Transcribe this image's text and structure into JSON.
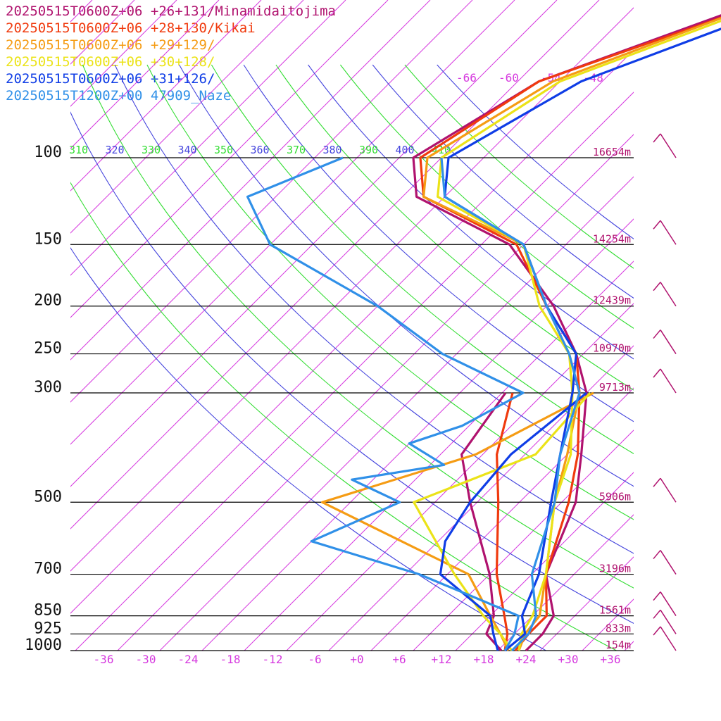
{
  "legend": [
    {
      "label": "20250515T0600Z+06 +26+131/Minamidaitojima",
      "color": "#b0126e"
    },
    {
      "label": "20250515T0600Z+06 +28+130/Kikai",
      "color": "#f03a0e"
    },
    {
      "label": "20250515T0600Z+06 +29+129/",
      "color": "#f59c14"
    },
    {
      "label": "20250515T0600Z+06 +30+128/",
      "color": "#ebe318"
    },
    {
      "label": "20250515T0600Z+06 +31+126/",
      "color": "#0f3de6"
    },
    {
      "label": "20250515T1200Z+00 47909_Naze",
      "color": "#3090e8"
    }
  ],
  "chart_data": {
    "type": "line",
    "pressure_levels": [
      {
        "p": 100,
        "label": "100",
        "height": "16654m"
      },
      {
        "p": 150,
        "label": "150",
        "height": "14254m"
      },
      {
        "p": 200,
        "label": "200",
        "height": "12439m"
      },
      {
        "p": 250,
        "label": "250",
        "height": "10970m"
      },
      {
        "p": 300,
        "label": "300",
        "height": "9713m"
      },
      {
        "p": 500,
        "label": "500",
        "height": "5906m"
      },
      {
        "p": 700,
        "label": "700",
        "height": "3196m"
      },
      {
        "p": 850,
        "label": "850",
        "height": "1561m"
      },
      {
        "p": 925,
        "label": "925",
        "height": "833m"
      },
      {
        "p": 1000,
        "label": "1000",
        "height": "154m"
      }
    ],
    "x_ticks": [
      "-36",
      "-30",
      "-24",
      "-18",
      "-12",
      "-6",
      "+0",
      "+6",
      "+12",
      "+18",
      "+24",
      "+30",
      "+36"
    ],
    "theta_labels": [
      {
        "value": "310",
        "color": "#33dd33"
      },
      {
        "value": "320",
        "color": "#4444dd"
      },
      {
        "value": "330",
        "color": "#33dd33"
      },
      {
        "value": "340",
        "color": "#4444dd"
      },
      {
        "value": "350",
        "color": "#33dd33"
      },
      {
        "value": "360",
        "color": "#4444dd"
      },
      {
        "value": "370",
        "color": "#33dd33"
      },
      {
        "value": "380",
        "color": "#4444dd"
      },
      {
        "value": "390",
        "color": "#33dd33"
      },
      {
        "value": "400",
        "color": "#4444dd"
      },
      {
        "value": "410",
        "color": "#33dd33"
      }
    ],
    "isotherm_labels": [
      "-66",
      "-60",
      "-54",
      "-48"
    ],
    "series": [
      {
        "name": "20250515T0600Z+06 +26+131/Minamidaitojima",
        "color": "#b0126e",
        "temp": [
          [
            1000,
            24
          ],
          [
            925,
            24
          ],
          [
            850,
            23
          ],
          [
            700,
            16
          ],
          [
            500,
            10
          ],
          [
            400,
            4
          ],
          [
            300,
            -4
          ],
          [
            250,
            -11
          ],
          [
            200,
            -21
          ],
          [
            150,
            -36
          ],
          [
            120,
            -56
          ],
          [
            100,
            -62
          ],
          [
            70,
            -55
          ],
          [
            50,
            -37
          ]
        ],
        "dew": [
          [
            1000,
            20.5
          ],
          [
            925,
            16
          ],
          [
            850,
            14.5
          ],
          [
            700,
            8
          ],
          [
            500,
            -5
          ],
          [
            400,
            -13
          ],
          [
            300,
            -15.5
          ]
        ]
      },
      {
        "name": "20250515T0600Z+06 +28+130/Kikai",
        "color": "#f03a0e",
        "temp": [
          [
            1000,
            22.5
          ],
          [
            925,
            22
          ],
          [
            850,
            22
          ],
          [
            700,
            16
          ],
          [
            500,
            9
          ],
          [
            400,
            3.5
          ],
          [
            300,
            -5
          ],
          [
            250,
            -11
          ],
          [
            200,
            -22
          ],
          [
            150,
            -35
          ],
          [
            120,
            -55
          ],
          [
            100,
            -61
          ],
          [
            70,
            -55
          ],
          [
            50,
            -36
          ]
        ],
        "dew": [
          [
            1000,
            21
          ],
          [
            925,
            19
          ],
          [
            850,
            16
          ],
          [
            700,
            9
          ],
          [
            500,
            -1
          ],
          [
            400,
            -8
          ],
          [
            300,
            -14.5
          ]
        ]
      },
      {
        "name": "20250515T0600Z+06 +29+129/",
        "color": "#f59c14",
        "temp": [
          [
            1000,
            23
          ],
          [
            925,
            21.5
          ],
          [
            850,
            21
          ],
          [
            700,
            16
          ],
          [
            500,
            7
          ],
          [
            400,
            2
          ],
          [
            300,
            -5
          ],
          [
            250,
            -12
          ],
          [
            200,
            -22
          ],
          [
            150,
            -34
          ],
          [
            120,
            -55
          ],
          [
            100,
            -60
          ],
          [
            70,
            -53
          ],
          [
            50,
            -36
          ]
        ],
        "dew": [
          [
            1000,
            21.5
          ],
          [
            925,
            18
          ],
          [
            850,
            14
          ],
          [
            700,
            5
          ],
          [
            500,
            -26
          ],
          [
            400,
            -11
          ],
          [
            300,
            -3
          ]
        ]
      },
      {
        "name": "20250515T0600Z+06 +30+128/",
        "color": "#ebe318",
        "temp": [
          [
            1000,
            23
          ],
          [
            925,
            21
          ],
          [
            850,
            20
          ],
          [
            700,
            16
          ],
          [
            500,
            7
          ],
          [
            400,
            2.5
          ],
          [
            300,
            -6
          ],
          [
            250,
            -12
          ],
          [
            200,
            -23
          ],
          [
            150,
            -34
          ],
          [
            120,
            -53
          ],
          [
            100,
            -58
          ],
          [
            70,
            -52
          ],
          [
            50,
            -35
          ]
        ],
        "dew": [
          [
            1000,
            22
          ],
          [
            925,
            18
          ],
          [
            850,
            13
          ],
          [
            700,
            3
          ],
          [
            500,
            -13
          ],
          [
            400,
            -2.5
          ],
          [
            300,
            -3.5
          ]
        ]
      },
      {
        "name": "20250515T0600Z+06 +31+126/",
        "color": "#0f3de6",
        "temp": [
          [
            1000,
            21
          ],
          [
            925,
            21.5
          ],
          [
            850,
            18.5
          ],
          [
            700,
            15
          ],
          [
            500,
            6.5
          ],
          [
            400,
            1
          ],
          [
            300,
            -6
          ],
          [
            250,
            -11
          ],
          [
            200,
            -22
          ],
          [
            150,
            -34
          ],
          [
            120,
            -52
          ],
          [
            100,
            -57
          ],
          [
            70,
            -49
          ],
          [
            50,
            -32
          ]
        ],
        "dew": [
          [
            1000,
            20
          ],
          [
            925,
            17
          ],
          [
            850,
            14
          ],
          [
            700,
            1
          ],
          [
            600,
            -3
          ],
          [
            500,
            -5
          ],
          [
            400,
            -6
          ],
          [
            300,
            -4
          ]
        ]
      },
      {
        "name": "20250515T1200Z+00 47909_Naze",
        "color": "#3090e8",
        "temp": [
          [
            1000,
            22
          ],
          [
            925,
            22
          ],
          [
            850,
            20.5
          ],
          [
            700,
            14
          ],
          [
            500,
            7
          ],
          [
            400,
            1
          ],
          [
            300,
            -5
          ],
          [
            250,
            -12
          ],
          [
            200,
            -22
          ],
          [
            150,
            -34
          ],
          [
            120,
            -52
          ],
          [
            100,
            -58
          ]
        ],
        "dew": [
          [
            1000,
            21
          ],
          [
            925,
            20
          ],
          [
            850,
            18
          ],
          [
            700,
            -2
          ],
          [
            600,
            -22
          ],
          [
            500,
            -15
          ],
          [
            450,
            -25
          ],
          [
            420,
            -14
          ],
          [
            380,
            -22
          ],
          [
            350,
            -17
          ],
          [
            300,
            -13
          ],
          [
            250,
            -30
          ],
          [
            200,
            -46
          ],
          [
            150,
            -70
          ],
          [
            120,
            -80
          ],
          [
            100,
            -72
          ]
        ]
      }
    ],
    "wind_barbs": [
      "100",
      "150",
      "200",
      "250",
      "300",
      "500",
      "700",
      "850",
      "925",
      "1000"
    ]
  }
}
